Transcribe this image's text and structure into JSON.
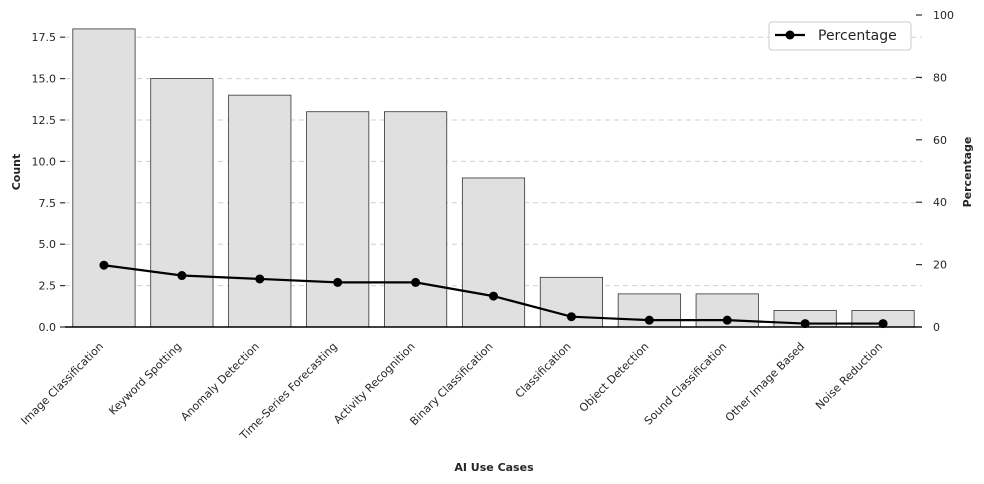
{
  "chart_data": {
    "type": "bar",
    "title": "",
    "xlabel": "AI Use Cases",
    "ylabel": "Count",
    "y2label": "Percentage",
    "categories": [
      "Image Classification",
      "Keyword Spotting",
      "Anomaly Detection",
      "Time-Series Forecasting",
      "Activity Recognition",
      "Binary Classification",
      "Classification",
      "Object Detection",
      "Sound Classification",
      "Other Image Based",
      "Noise Reduction"
    ],
    "series": [
      {
        "type": "bar",
        "axis": "left",
        "values": [
          18,
          15,
          14,
          13,
          13,
          9,
          3,
          2,
          2,
          1,
          1
        ]
      },
      {
        "type": "line",
        "axis": "right",
        "name": "Percentage",
        "values": [
          19.8,
          16.5,
          15.4,
          14.3,
          14.3,
          9.9,
          3.3,
          2.2,
          2.2,
          1.1,
          1.1
        ]
      }
    ],
    "ylim": [
      0,
      18.84
    ],
    "y_ticks": [
      "0.0",
      "2.5",
      "5.0",
      "7.5",
      "10.0",
      "12.5",
      "15.0",
      "17.5"
    ],
    "y2lim": [
      0,
      100
    ],
    "y2_ticks": [
      "0",
      "20",
      "40",
      "60",
      "80",
      "100"
    ],
    "grid": "horizontal dashed",
    "legend": {
      "position": "top-right",
      "entries": [
        "Percentage"
      ]
    },
    "colors": {
      "bar_fill": "#e0e0e0",
      "bar_edge": "#333333",
      "line": "#000000",
      "grid": "#d0d0d0",
      "axis": "#000000"
    }
  }
}
